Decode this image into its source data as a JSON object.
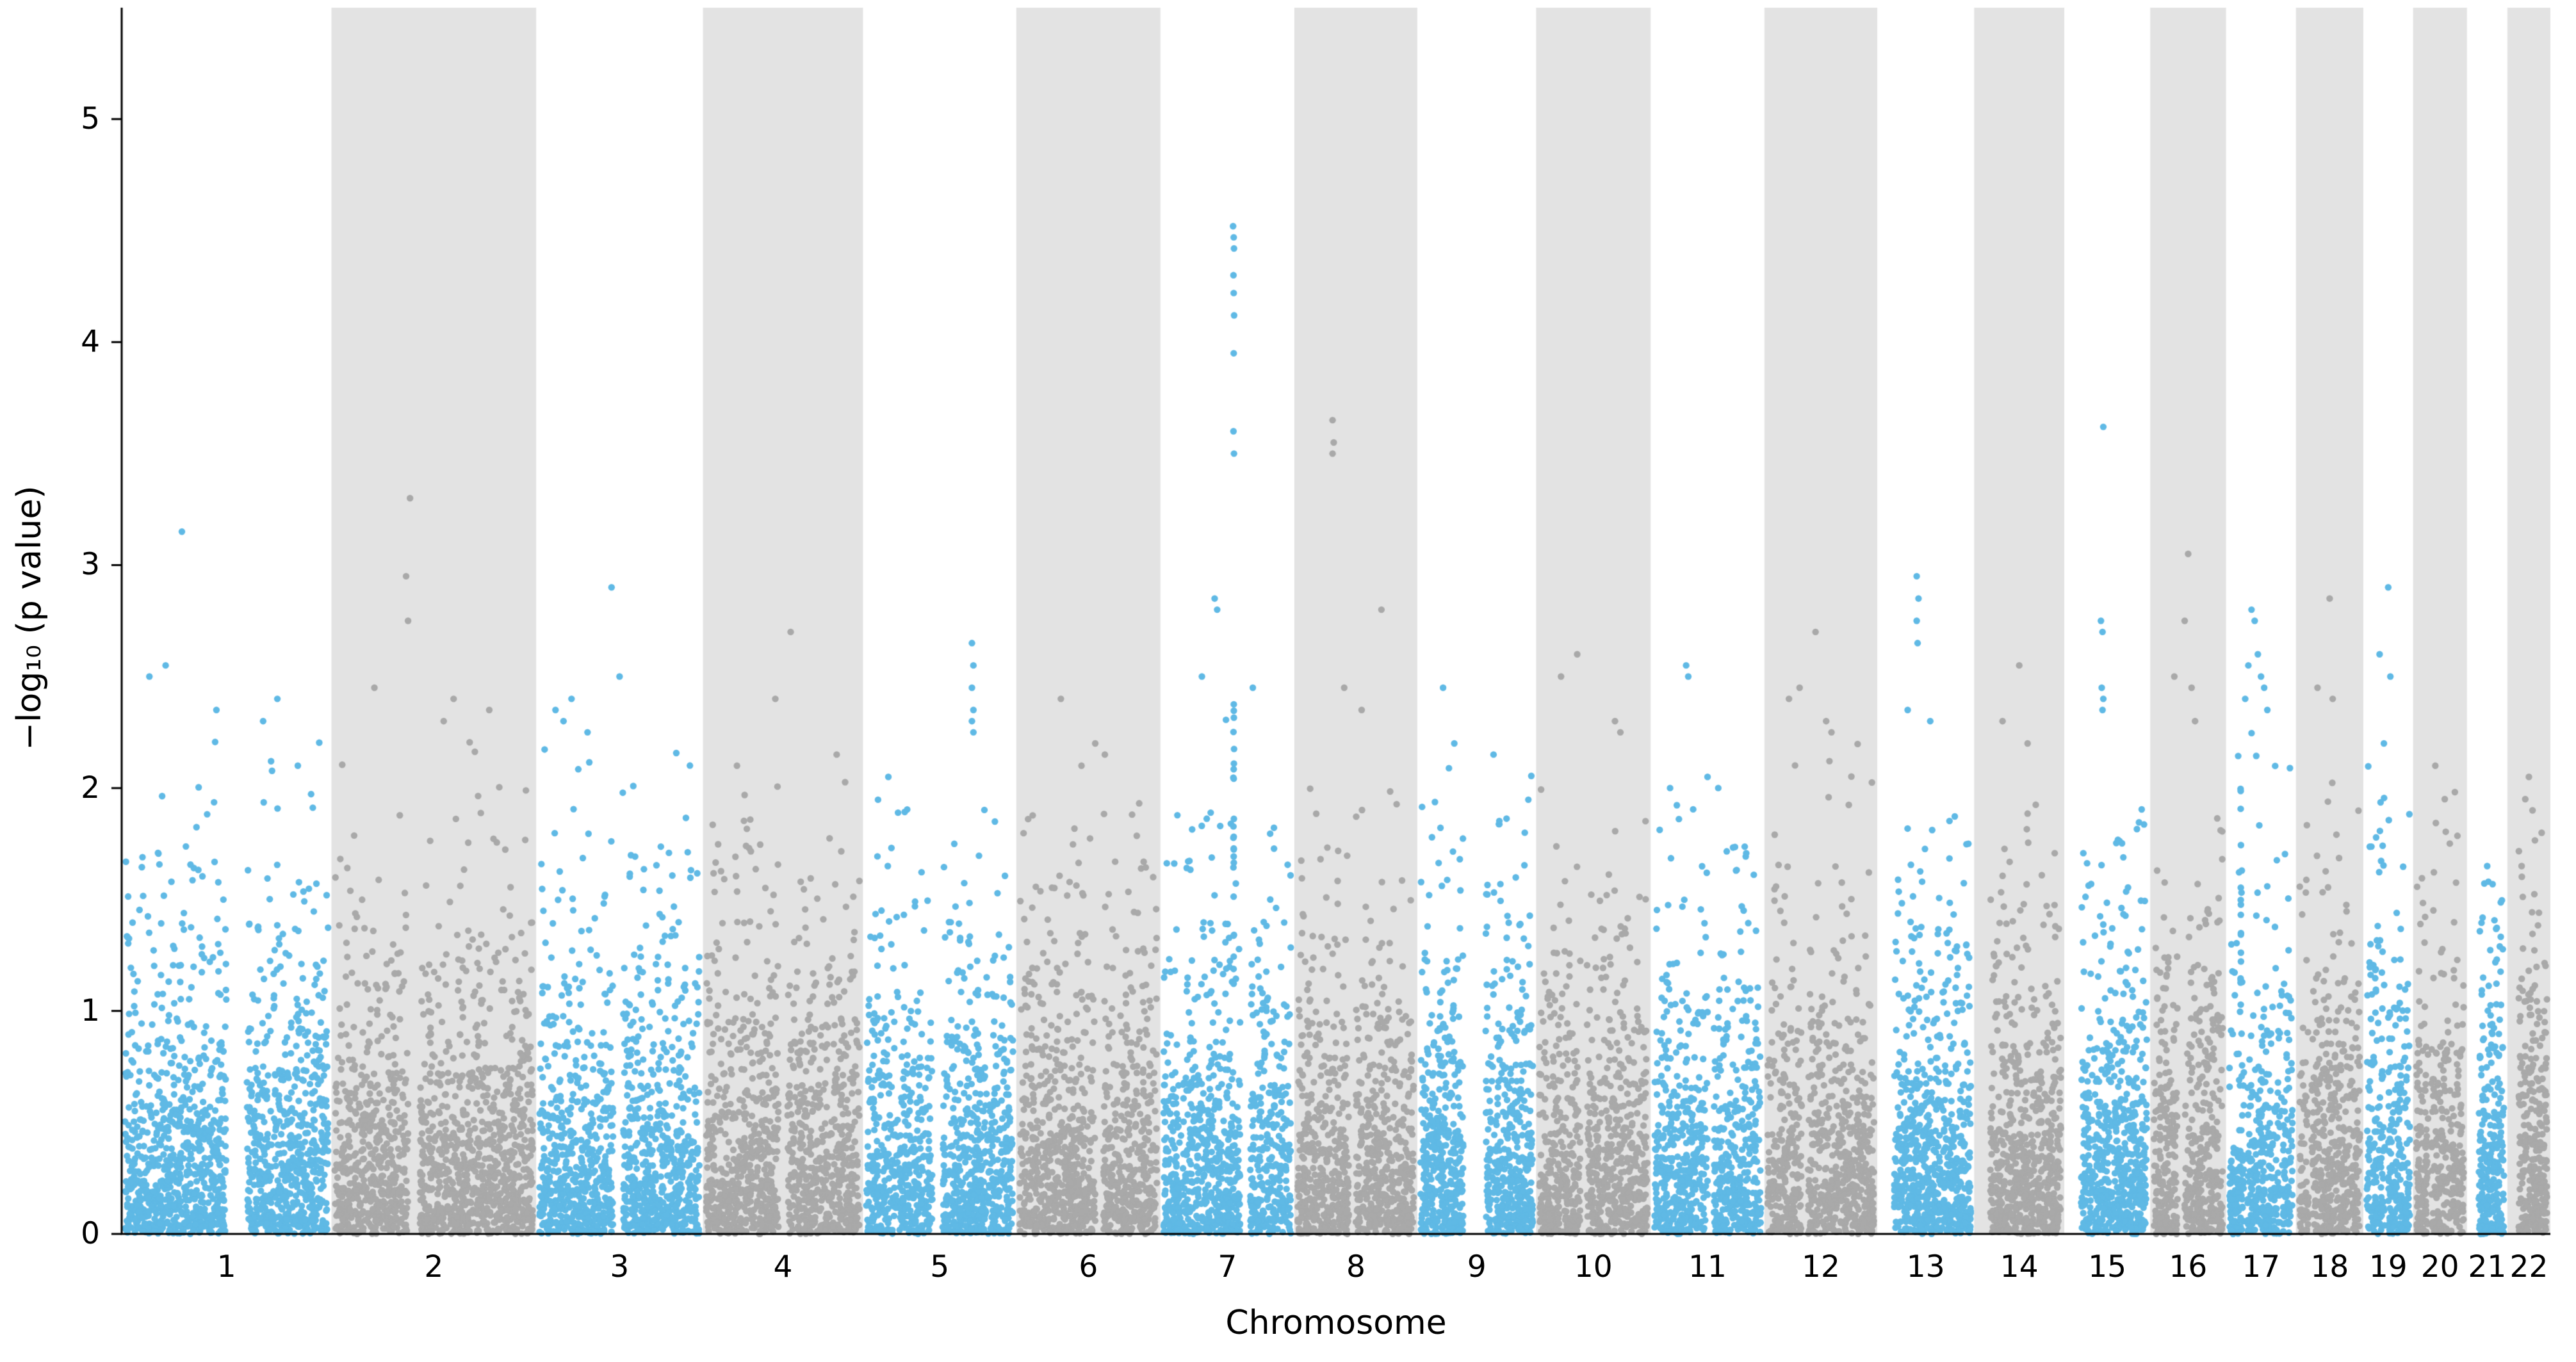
{
  "figure": {
    "background": "#ffffff"
  },
  "chart_data": {
    "type": "scatter",
    "variant": "manhattan-plot",
    "title": "",
    "xlabel": "Chromosome",
    "ylabel": "−log₁₀ (p value)",
    "ylim": [
      0,
      5.5
    ],
    "yticks": [
      "0",
      "1",
      "2",
      "3",
      "4",
      "5"
    ],
    "grid": false,
    "legend": null,
    "colors": {
      "odd_chromosome_points": "#5fb9e5",
      "even_chromosome_points": "#a9a9a9",
      "even_chromosome_band": "#e3e3e3",
      "axis": "#000000"
    },
    "point_radius_px": 5.2,
    "chromosomes": [
      {
        "label": "1",
        "size": 249,
        "n": 1494,
        "cap": 2.3,
        "gaps": [
          [
            0.5,
            0.6
          ]
        ],
        "outliers": [
          [
            3.15,
            0.28
          ],
          [
            2.55,
            0.2
          ],
          [
            2.5,
            0.12
          ],
          [
            2.4,
            0.75
          ],
          [
            2.35,
            0.45
          ],
          [
            2.3,
            0.68
          ]
        ],
        "streaks": []
      },
      {
        "label": "2",
        "size": 243,
        "n": 1458,
        "cap": 2.25,
        "gaps": [
          [
            0.37,
            0.43
          ]
        ],
        "outliers": [
          [
            3.3,
            0.38
          ],
          [
            2.95,
            0.36
          ],
          [
            2.75,
            0.37
          ],
          [
            2.45,
            0.2
          ],
          [
            2.4,
            0.6
          ],
          [
            2.35,
            0.78
          ],
          [
            2.3,
            0.55
          ]
        ],
        "streaks": []
      },
      {
        "label": "3",
        "size": 198,
        "n": 1188,
        "cap": 2.25,
        "gaps": [
          [
            0.46,
            0.52
          ]
        ],
        "outliers": [
          [
            2.9,
            0.45
          ],
          [
            2.5,
            0.5
          ],
          [
            2.4,
            0.2
          ],
          [
            2.35,
            0.1
          ],
          [
            2.3,
            0.15
          ],
          [
            2.25,
            0.3
          ]
        ],
        "streaks": []
      },
      {
        "label": "4",
        "size": 190,
        "n": 1140,
        "cap": 2.05,
        "gaps": [
          [
            0.47,
            0.53
          ]
        ],
        "outliers": [
          [
            2.7,
            0.55
          ],
          [
            2.4,
            0.45
          ],
          [
            2.15,
            0.85
          ],
          [
            2.1,
            0.2
          ]
        ],
        "streaks": []
      },
      {
        "label": "5",
        "size": 182,
        "n": 1092,
        "cap": 1.95,
        "gaps": [
          [
            0.45,
            0.52
          ]
        ],
        "outliers": [
          [
            2.65,
            0.72
          ],
          [
            2.55,
            0.73
          ],
          [
            2.45,
            0.72
          ],
          [
            2.35,
            0.73
          ],
          [
            2.3,
            0.72
          ],
          [
            2.25,
            0.73
          ],
          [
            2.05,
            0.15
          ]
        ],
        "streaks": []
      },
      {
        "label": "6",
        "size": 171,
        "n": 1026,
        "cap": 2.1,
        "gaps": [
          [
            0.55,
            0.61
          ]
        ],
        "outliers": [
          [
            2.4,
            0.3
          ],
          [
            2.2,
            0.55
          ],
          [
            2.15,
            0.62
          ],
          [
            2.1,
            0.45
          ]
        ],
        "streaks": []
      },
      {
        "label": "7",
        "size": 159,
        "n": 954,
        "cap": 2.35,
        "gaps": [
          [
            0.6,
            0.68
          ]
        ],
        "outliers": [
          [
            4.52,
            0.545
          ],
          [
            4.47,
            0.55
          ],
          [
            4.42,
            0.552
          ],
          [
            4.3,
            0.548
          ],
          [
            4.22,
            0.55
          ],
          [
            4.12,
            0.553
          ],
          [
            3.95,
            0.55
          ],
          [
            3.6,
            0.548
          ],
          [
            3.5,
            0.552
          ],
          [
            2.85,
            0.4
          ],
          [
            2.8,
            0.42
          ],
          [
            2.5,
            0.3
          ],
          [
            2.45,
            0.7
          ]
        ],
        "streaks": [
          {
            "x": 0.55,
            "from": 1.1,
            "to": 2.4,
            "n": 22
          }
        ]
      },
      {
        "label": "8",
        "size": 146,
        "n": 876,
        "cap": 2.1,
        "gaps": [
          [
            0.44,
            0.5
          ]
        ],
        "outliers": [
          [
            3.65,
            0.3
          ],
          [
            3.55,
            0.31
          ],
          [
            3.5,
            0.3
          ],
          [
            2.8,
            0.72
          ],
          [
            2.45,
            0.4
          ],
          [
            2.35,
            0.55
          ]
        ],
        "streaks": []
      },
      {
        "label": "9",
        "size": 141,
        "n": 846,
        "cap": 2.1,
        "gaps": [
          [
            0.38,
            0.58
          ]
        ],
        "outliers": [
          [
            2.45,
            0.2
          ],
          [
            2.2,
            0.3
          ],
          [
            2.15,
            0.65
          ]
        ],
        "streaks": []
      },
      {
        "label": "10",
        "size": 136,
        "n": 816,
        "cap": 2.05,
        "gaps": [
          [
            0.38,
            0.44
          ]
        ],
        "outliers": [
          [
            2.6,
            0.35
          ],
          [
            2.5,
            0.2
          ],
          [
            2.3,
            0.7
          ],
          [
            2.25,
            0.75
          ]
        ],
        "streaks": []
      },
      {
        "label": "11",
        "size": 135,
        "n": 810,
        "cap": 2.0,
        "gaps": [
          [
            0.5,
            0.56
          ]
        ],
        "outliers": [
          [
            2.55,
            0.3
          ],
          [
            2.5,
            0.32
          ],
          [
            2.05,
            0.5
          ],
          [
            2.0,
            0.6
          ],
          [
            2.0,
            0.15
          ]
        ],
        "streaks": []
      },
      {
        "label": "12",
        "size": 134,
        "n": 804,
        "cap": 2.2,
        "gaps": [
          [
            0.32,
            0.38
          ]
        ],
        "outliers": [
          [
            2.7,
            0.45
          ],
          [
            2.45,
            0.3
          ],
          [
            2.4,
            0.2
          ],
          [
            2.3,
            0.55
          ],
          [
            2.25,
            0.6
          ]
        ],
        "streaks": []
      },
      {
        "label": "13",
        "size": 115,
        "n": 690,
        "cap": 1.9,
        "gaps": [
          [
            0.0,
            0.15
          ]
        ],
        "outliers": [
          [
            2.95,
            0.4
          ],
          [
            2.85,
            0.42
          ],
          [
            2.75,
            0.4
          ],
          [
            2.65,
            0.41
          ],
          [
            2.35,
            0.3
          ],
          [
            2.3,
            0.55
          ]
        ],
        "streaks": []
      },
      {
        "label": "14",
        "size": 107,
        "n": 642,
        "cap": 1.95,
        "gaps": [
          [
            0.0,
            0.15
          ]
        ],
        "outliers": [
          [
            2.55,
            0.5
          ],
          [
            2.3,
            0.3
          ],
          [
            2.2,
            0.6
          ]
        ],
        "streaks": []
      },
      {
        "label": "15",
        "size": 102,
        "n": 612,
        "cap": 2.0,
        "gaps": [
          [
            0.0,
            0.17
          ]
        ],
        "outliers": [
          [
            3.62,
            0.45
          ],
          [
            2.75,
            0.42
          ],
          [
            2.7,
            0.44
          ],
          [
            2.45,
            0.43
          ],
          [
            2.4,
            0.45
          ],
          [
            2.35,
            0.44
          ]
        ],
        "streaks": []
      },
      {
        "label": "16",
        "size": 90,
        "n": 540,
        "cap": 2.15,
        "gaps": [
          [
            0.35,
            0.45
          ]
        ],
        "outliers": [
          [
            3.05,
            0.5
          ],
          [
            2.75,
            0.45
          ],
          [
            2.5,
            0.3
          ],
          [
            2.45,
            0.55
          ],
          [
            2.3,
            0.6
          ]
        ],
        "streaks": []
      },
      {
        "label": "17",
        "size": 83,
        "n": 498,
        "cap": 2.3,
        "gaps": [
          [
            0.23,
            0.28
          ]
        ],
        "outliers": [
          [
            2.8,
            0.35
          ],
          [
            2.75,
            0.4
          ],
          [
            2.6,
            0.45
          ],
          [
            2.55,
            0.3
          ],
          [
            2.5,
            0.5
          ],
          [
            2.45,
            0.55
          ],
          [
            2.4,
            0.25
          ],
          [
            2.35,
            0.6
          ]
        ],
        "streaks": [
          {
            "x": 0.18,
            "from": 1.0,
            "to": 2.0,
            "n": 14
          }
        ]
      },
      {
        "label": "18",
        "size": 80,
        "n": 480,
        "cap": 2.05,
        "gaps": [
          [
            0.15,
            0.2
          ]
        ],
        "outliers": [
          [
            2.85,
            0.5
          ],
          [
            2.45,
            0.3
          ],
          [
            2.4,
            0.55
          ]
        ],
        "streaks": []
      },
      {
        "label": "19",
        "size": 59,
        "n": 354,
        "cap": 2.1,
        "gaps": [
          [
            0.42,
            0.5
          ]
        ],
        "outliers": [
          [
            2.9,
            0.5
          ],
          [
            2.6,
            0.3
          ],
          [
            2.5,
            0.55
          ],
          [
            2.2,
            0.4
          ]
        ],
        "streaks": []
      },
      {
        "label": "20",
        "size": 64,
        "n": 384,
        "cap": 2.05,
        "gaps": [
          [
            0.25,
            0.32
          ]
        ],
        "outliers": [
          [
            2.1,
            0.4
          ],
          [
            1.95,
            0.6
          ]
        ],
        "streaks": []
      },
      {
        "label": "21",
        "size": 48,
        "n": 288,
        "cap": 1.6,
        "gaps": [
          [
            0.0,
            0.25
          ]
        ],
        "outliers": [
          [
            1.65,
            0.5
          ]
        ],
        "streaks": []
      },
      {
        "label": "22",
        "size": 51,
        "n": 306,
        "cap": 1.95,
        "gaps": [
          [
            0.0,
            0.22
          ]
        ],
        "outliers": [
          [
            2.05,
            0.5
          ],
          [
            1.95,
            0.4
          ],
          [
            1.9,
            0.6
          ],
          [
            1.65,
            0.3
          ]
        ],
        "streaks": []
      }
    ]
  }
}
